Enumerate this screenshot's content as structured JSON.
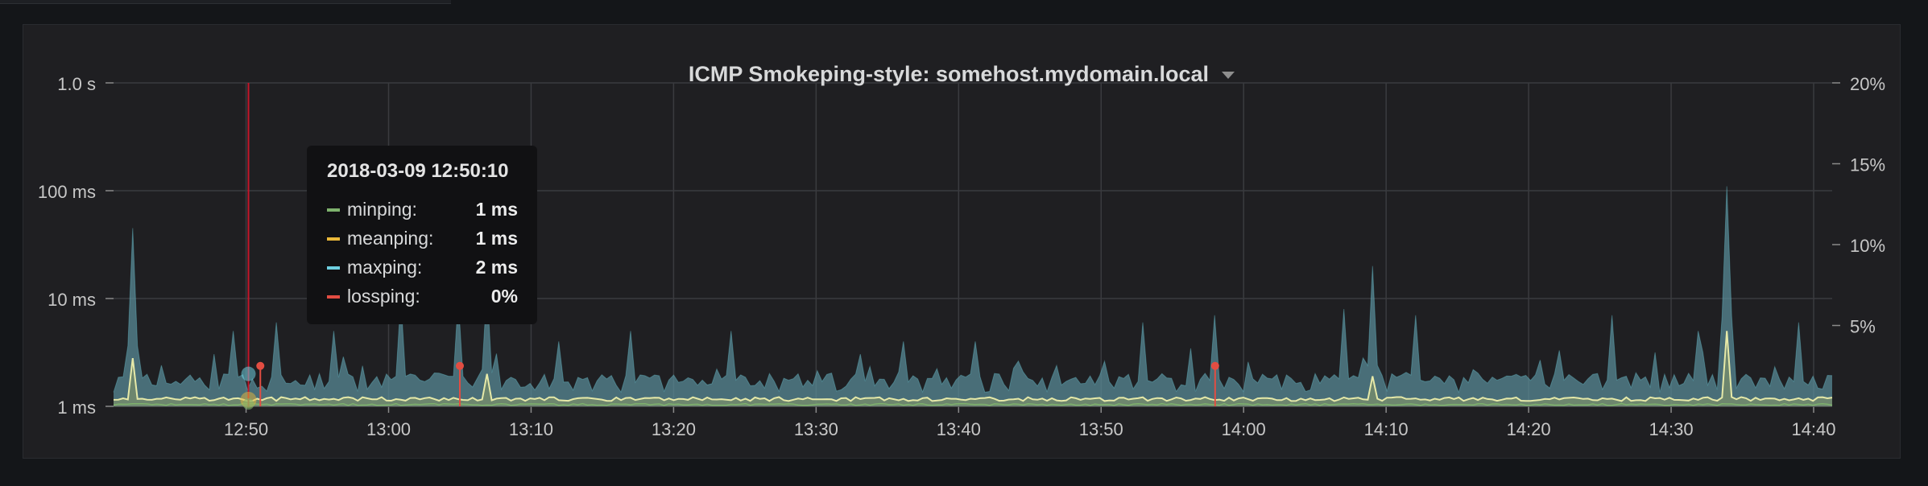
{
  "top_strip": {},
  "panel": {
    "title": "ICMP Smokeping-style: somehost.mydomain.local",
    "menu_icon": "caret-down-icon"
  },
  "tooltip": {
    "time": "2018-03-09 12:50:10",
    "rows": [
      {
        "name": "minping:",
        "value": "1 ms",
        "color": "#7eb26d"
      },
      {
        "name": "meanping:",
        "value": "1 ms",
        "color": "#eab839"
      },
      {
        "name": "maxping:",
        "value": "2 ms",
        "color": "#6ed0e0"
      },
      {
        "name": "lossping:",
        "value": "0%",
        "color": "#e24d42"
      }
    ]
  },
  "chart_data": {
    "type": "area",
    "x_tick_labels": [
      "12:50",
      "13:00",
      "13:10",
      "13:20",
      "13:30",
      "13:40",
      "13:50",
      "14:00",
      "14:10",
      "14:20",
      "14:30",
      "14:40"
    ],
    "y_left": {
      "scale": "log",
      "range_ms": [
        1,
        1000
      ],
      "tick_values": [
        1,
        10,
        100,
        1000
      ],
      "tick_labels": [
        "1 ms",
        "10 ms",
        "100 ms",
        "1.0 s"
      ]
    },
    "y_right": {
      "range": [
        0,
        20
      ],
      "tick_values": [
        5,
        10,
        15,
        20
      ],
      "tick_labels": [
        "5%",
        "10%",
        "15%",
        "20%"
      ]
    },
    "grid": true,
    "crosshair_time": "12:50:10",
    "colors": {
      "maxping": "#6ed0e0",
      "meanping": "#eab839",
      "minping": "#7eb26d",
      "lossping": "#e24d42"
    },
    "maxping_spikes": [
      {
        "t": "12:42",
        "v": 45
      },
      {
        "t": "12:49",
        "v": 5
      },
      {
        "t": "12:52",
        "v": 6
      },
      {
        "t": "12:56",
        "v": 5
      },
      {
        "t": "13:01",
        "v": 10
      },
      {
        "t": "13:05",
        "v": 10
      },
      {
        "t": "13:07",
        "v": 13
      },
      {
        "t": "13:12",
        "v": 4
      },
      {
        "t": "13:17",
        "v": 5
      },
      {
        "t": "13:24",
        "v": 5
      },
      {
        "t": "13:36",
        "v": 4
      },
      {
        "t": "13:41",
        "v": 4
      },
      {
        "t": "13:53",
        "v": 6
      },
      {
        "t": "13:58",
        "v": 7
      },
      {
        "t": "14:07",
        "v": 8
      },
      {
        "t": "14:09",
        "v": 20
      },
      {
        "t": "14:12",
        "v": 7
      },
      {
        "t": "14:26",
        "v": 7
      },
      {
        "t": "14:32",
        "v": 5
      },
      {
        "t": "14:34",
        "v": 110
      },
      {
        "t": "14:39",
        "v": 6
      }
    ],
    "meanping_peaks": [
      {
        "t": "12:42",
        "v": 2.8
      },
      {
        "t": "13:07",
        "v": 2.0
      },
      {
        "t": "14:09",
        "v": 1.9
      },
      {
        "t": "14:34",
        "v": 5.0
      }
    ],
    "lossping_markers": [
      {
        "t": "12:51",
        "v": 2.5
      },
      {
        "t": "13:05",
        "v": 2.5
      },
      {
        "t": "13:58",
        "v": 2.5
      }
    ]
  }
}
